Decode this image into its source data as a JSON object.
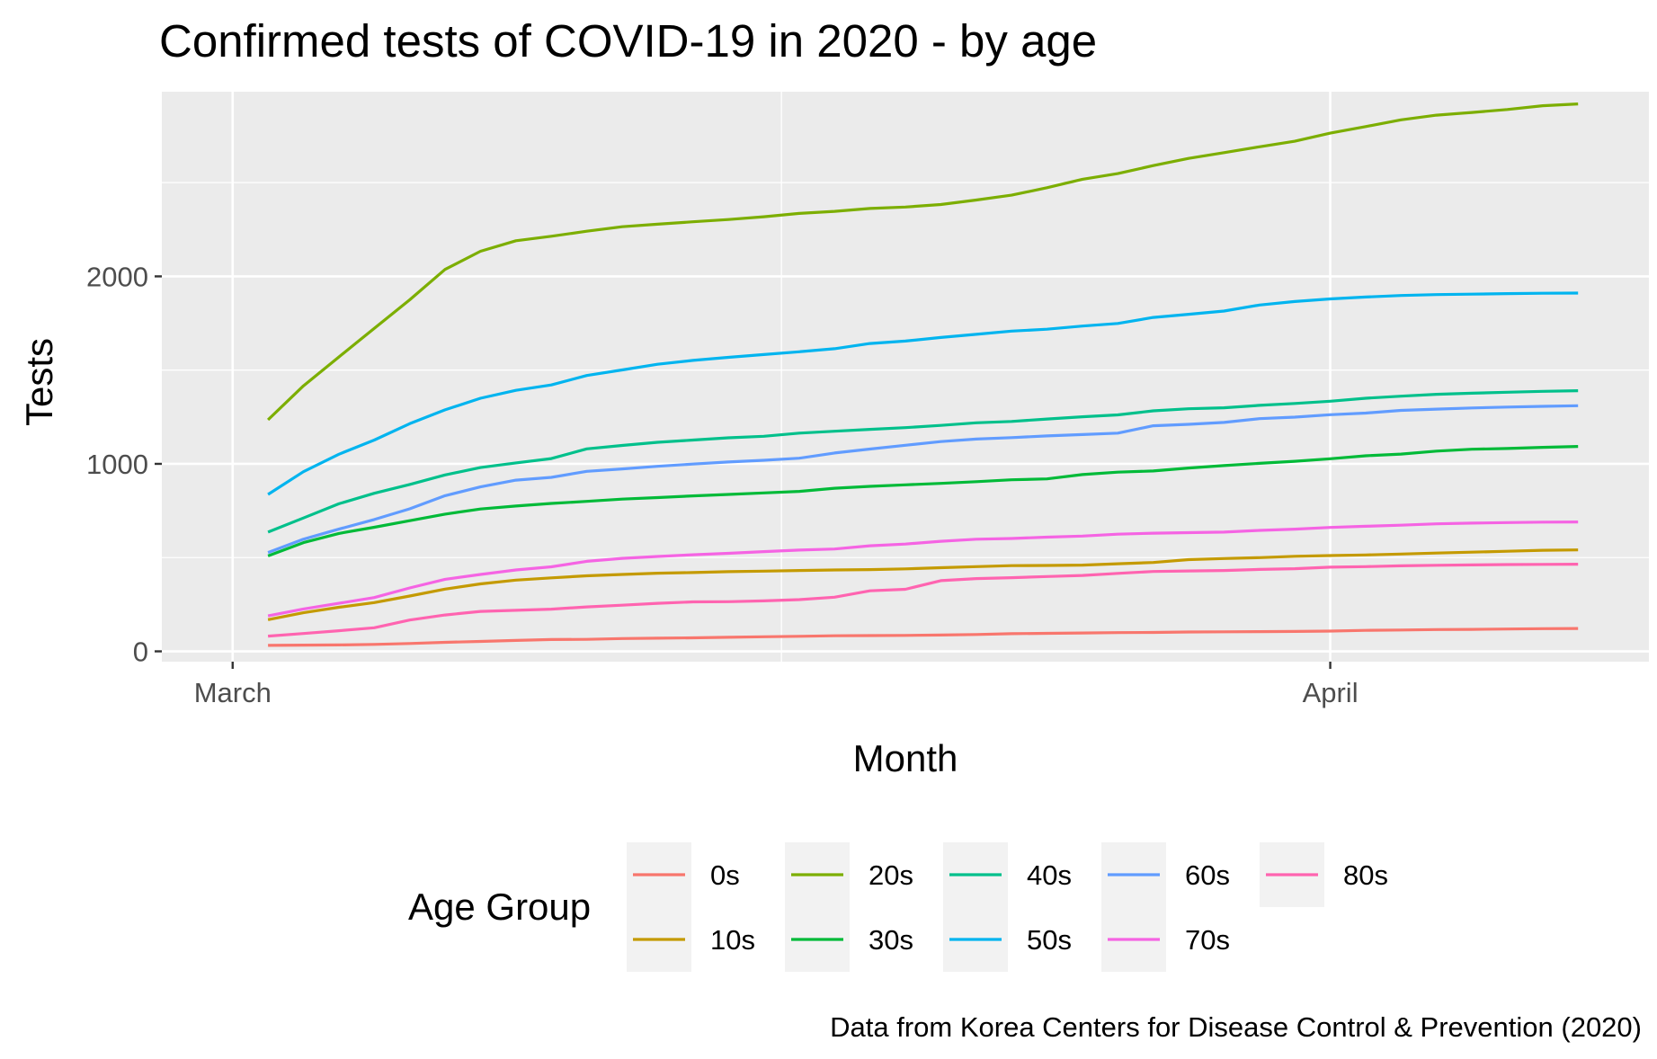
{
  "chart_data": {
    "type": "line",
    "title": "Confirmed tests of COVID-19 in 2020 - by age",
    "xlabel": "Month",
    "ylabel": "Tests",
    "caption": "Data from Korea Centers for Disease Control & Prevention (2020)",
    "legend_title": "Age Group",
    "legend_position": "bottom",
    "grid": true,
    "x_tick_labels": [
      "March",
      "April"
    ],
    "x_tick_dates": [
      "2020-03-01",
      "2020-04-01"
    ],
    "xlim": [
      "2020-02-28",
      "2020-04-10"
    ],
    "ylim": [
      -55,
      2985
    ],
    "y_ticks": [
      0,
      1000,
      2000
    ],
    "y_tick_labels": [
      "0",
      "1000",
      "2000"
    ],
    "x": [
      "2020-03-02",
      "2020-03-03",
      "2020-03-04",
      "2020-03-05",
      "2020-03-06",
      "2020-03-07",
      "2020-03-08",
      "2020-03-09",
      "2020-03-10",
      "2020-03-11",
      "2020-03-12",
      "2020-03-13",
      "2020-03-14",
      "2020-03-15",
      "2020-03-16",
      "2020-03-17",
      "2020-03-18",
      "2020-03-19",
      "2020-03-20",
      "2020-03-21",
      "2020-03-22",
      "2020-03-23",
      "2020-03-24",
      "2020-03-25",
      "2020-03-26",
      "2020-03-27",
      "2020-03-28",
      "2020-03-29",
      "2020-03-30",
      "2020-03-31",
      "2020-04-01",
      "2020-04-02",
      "2020-04-03",
      "2020-04-04",
      "2020-04-05",
      "2020-04-06",
      "2020-04-07",
      "2020-04-08"
    ],
    "series": [
      {
        "name": "0s",
        "color": "#F8766D",
        "values": [
          32,
          33,
          34,
          37,
          42,
          48,
          53,
          58,
          63,
          64,
          68,
          70,
          72,
          75,
          78,
          80,
          83,
          84,
          85,
          87,
          90,
          94,
          96,
          98,
          100,
          101,
          103,
          104,
          105,
          106,
          108,
          112,
          114,
          116,
          117,
          119,
          121,
          122
        ]
      },
      {
        "name": "10s",
        "color": "#C49A00",
        "values": [
          169,
          206,
          235,
          260,
          295,
          332,
          360,
          380,
          392,
          403,
          410,
          417,
          420,
          425,
          428,
          431,
          434,
          436,
          440,
          446,
          452,
          457,
          458,
          460,
          467,
          474,
          489,
          495,
          500,
          507,
          511,
          514,
          519,
          524,
          529,
          534,
          539,
          541
        ]
      },
      {
        "name": "20s",
        "color": "#7CAE00",
        "values": [
          1235,
          1416,
          1570,
          1723,
          1875,
          2037,
          2134,
          2190,
          2214,
          2241,
          2265,
          2278,
          2291,
          2303,
          2318,
          2336,
          2347,
          2362,
          2370,
          2383,
          2407,
          2433,
          2473,
          2518,
          2548,
          2591,
          2629,
          2660,
          2691,
          2721,
          2764,
          2799,
          2835,
          2860,
          2874,
          2890,
          2910,
          2920
        ]
      },
      {
        "name": "30s",
        "color": "#00BA38",
        "values": [
          509,
          580,
          629,
          662,
          697,
          732,
          759,
          775,
          789,
          800,
          812,
          820,
          829,
          837,
          845,
          853,
          870,
          880,
          888,
          896,
          905,
          915,
          920,
          943,
          956,
          962,
          978,
          991,
          1003,
          1014,
          1027,
          1043,
          1052,
          1068,
          1078,
          1082,
          1088,
          1093
        ]
      },
      {
        "name": "40s",
        "color": "#00C08B",
        "values": [
          636,
          711,
          787,
          843,
          890,
          941,
          980,
          1005,
          1028,
          1080,
          1098,
          1115,
          1127,
          1139,
          1147,
          1164,
          1174,
          1184,
          1193,
          1205,
          1219,
          1226,
          1239,
          1251,
          1261,
          1283,
          1294,
          1299,
          1312,
          1322,
          1334,
          1350,
          1361,
          1371,
          1377,
          1382,
          1387,
          1390
        ]
      },
      {
        "name": "50s",
        "color": "#00B4EF",
        "values": [
          837,
          958,
          1051,
          1127,
          1214,
          1288,
          1350,
          1392,
          1421,
          1471,
          1501,
          1531,
          1552,
          1568,
          1583,
          1598,
          1614,
          1642,
          1655,
          1674,
          1691,
          1708,
          1718,
          1735,
          1749,
          1781,
          1798,
          1815,
          1847,
          1866,
          1880,
          1890,
          1898,
          1903,
          1905,
          1908,
          1910,
          1911
        ]
      },
      {
        "name": "60s",
        "color": "#619CFF",
        "values": [
          527,
          598,
          652,
          703,
          760,
          830,
          877,
          913,
          928,
          960,
          973,
          987,
          999,
          1010,
          1019,
          1030,
          1058,
          1079,
          1099,
          1119,
          1132,
          1140,
          1149,
          1156,
          1164,
          1203,
          1211,
          1221,
          1241,
          1249,
          1262,
          1271,
          1285,
          1292,
          1298,
          1303,
          1307,
          1310
        ]
      },
      {
        "name": "70s",
        "color": "#F564E3",
        "values": [
          189,
          226,
          256,
          287,
          338,
          384,
          410,
          434,
          451,
          480,
          496,
          506,
          515,
          523,
          532,
          540,
          546,
          563,
          572,
          587,
          598,
          602,
          609,
          615,
          625,
          630,
          633,
          636,
          645,
          652,
          661,
          667,
          673,
          680,
          684,
          687,
          689,
          690
        ]
      },
      {
        "name": "80s",
        "color": "#FF64B0",
        "values": [
          81,
          95,
          110,
          126,
          167,
          194,
          213,
          219,
          225,
          237,
          246,
          256,
          264,
          265,
          269,
          276,
          289,
          323,
          331,
          377,
          388,
          393,
          399,
          405,
          416,
          426,
          429,
          431,
          437,
          441,
          449,
          452,
          456,
          459,
          461,
          463,
          464,
          465
        ]
      }
    ]
  }
}
